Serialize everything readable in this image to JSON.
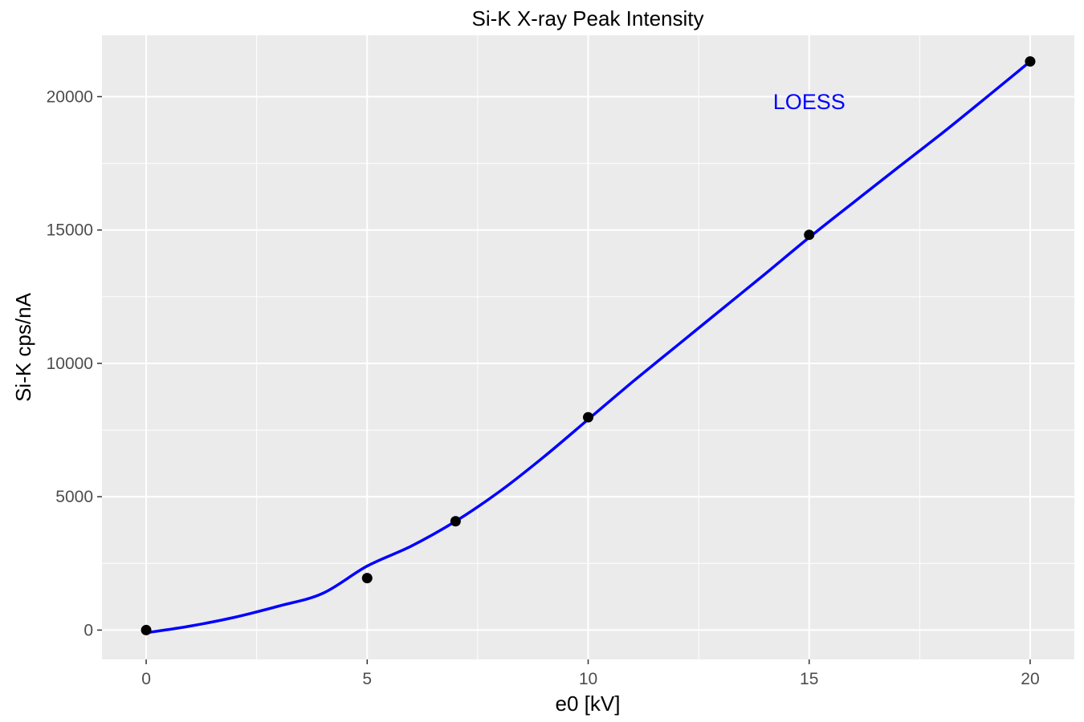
{
  "chart_data": {
    "type": "scatter",
    "title": "Si-K X-ray Peak Intensity",
    "xlabel": "e0 [kV]",
    "ylabel": "Si-K cps/nA",
    "xlim": [
      -1,
      21
    ],
    "ylim": [
      -1100,
      22300
    ],
    "x_ticks": [
      0,
      5,
      10,
      15,
      20
    ],
    "y_ticks": [
      0,
      5000,
      10000,
      15000,
      20000
    ],
    "x_minor": [
      2.5,
      7.5,
      12.5,
      17.5
    ],
    "y_minor": [
      2500,
      7500,
      12500,
      17500
    ],
    "grid": true,
    "panel_background": "#ebebeb",
    "grid_color": "#ffffff",
    "point_color": "#000000",
    "series": [
      {
        "x": [
          0,
          5,
          7,
          10,
          15,
          20
        ],
        "y": [
          0,
          1950,
          4080,
          7980,
          14820,
          21320
        ]
      }
    ],
    "fit": {
      "method_label": "LOESS",
      "color": "#0000ff",
      "x": [
        0,
        1,
        2,
        3,
        4,
        5,
        6,
        7,
        8,
        9,
        10,
        11,
        12,
        13,
        14,
        15,
        16,
        17,
        18,
        19,
        20
      ],
      "y": [
        -100,
        150,
        480,
        900,
        1380,
        2400,
        3150,
        4080,
        5200,
        6500,
        7900,
        9300,
        10650,
        12000,
        13350,
        14720,
        16030,
        17330,
        18620,
        19960,
        21320
      ]
    },
    "annotation": {
      "text": "LOESS",
      "x": 15,
      "y": 19800,
      "color": "#0000ff"
    }
  }
}
